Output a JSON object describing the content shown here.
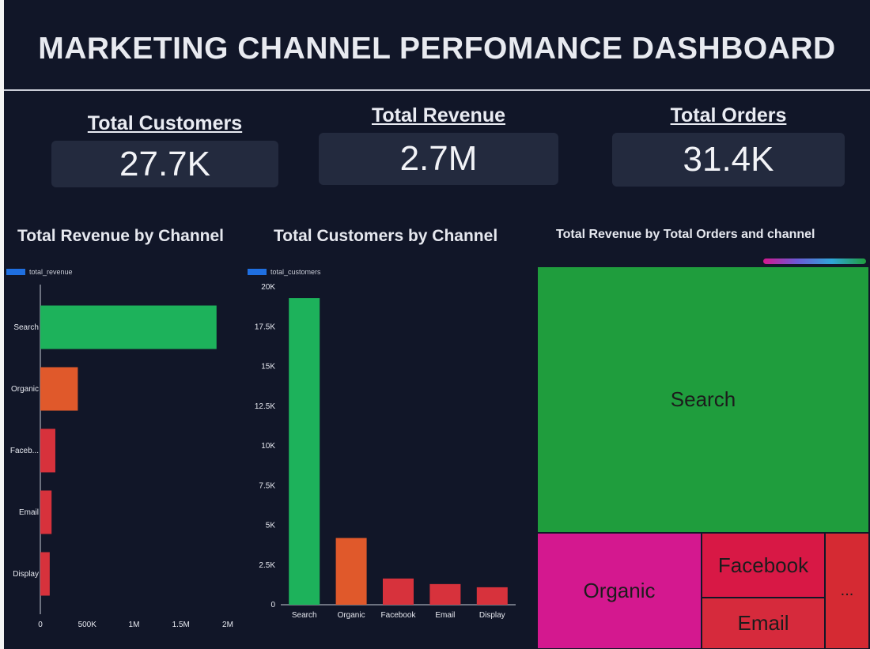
{
  "dashboard": {
    "title": "MARKETING CHANNEL PERFOMANCE DASHBOARD"
  },
  "kpis": [
    {
      "label": "Total Customers",
      "value": "27.7K"
    },
    {
      "label": "Total Revenue",
      "value": "2.7M"
    },
    {
      "label": "Total Orders",
      "value": "31.4K"
    }
  ],
  "colors": {
    "background": "#111628",
    "card": "#232a3e",
    "search": "#1db25b",
    "organic": "#e0592b",
    "other": "#d7323c",
    "legend": "#1f6fe0",
    "treemap_search": "#1f9d3d",
    "treemap_organic": "#d4188f",
    "treemap_facebook": "#d81845",
    "treemap_email": "#d62a3c",
    "treemap_display": "#d52a33"
  },
  "chart_data": [
    {
      "type": "bar",
      "orientation": "horizontal",
      "title": "Total Revenue by Channel",
      "legend": "total_revenue",
      "categories": [
        "Search",
        "Organic",
        "Facebook",
        "Email",
        "Display"
      ],
      "category_labels": [
        "Search",
        "Organic",
        "Faceb...",
        "Email",
        "Display"
      ],
      "values": [
        1880000,
        400000,
        160000,
        120000,
        100000
      ],
      "xlim": [
        0,
        2000000
      ],
      "ticks": [
        0,
        500000,
        1000000,
        1500000,
        2000000
      ],
      "tick_labels": [
        "0",
        "500K",
        "1M",
        "1.5M",
        "2M"
      ]
    },
    {
      "type": "bar",
      "title": "Total Customers by Channel",
      "legend": "total_customers",
      "categories": [
        "Search",
        "Organic",
        "Facebook",
        "Email",
        "Display"
      ],
      "values": [
        19300,
        4200,
        1650,
        1300,
        1100
      ],
      "ylim": [
        0,
        20000
      ],
      "ticks": [
        0,
        2500,
        5000,
        7500,
        10000,
        12500,
        15000,
        17500,
        20000
      ],
      "tick_labels": [
        "0",
        "2.5K",
        "5K",
        "7.5K",
        "10K",
        "12.5K",
        "15K",
        "17.5K",
        "20K"
      ]
    },
    {
      "type": "treemap",
      "title": "Total Revenue by Total Orders and channel",
      "cells": [
        {
          "label": "Search"
        },
        {
          "label": "Organic"
        },
        {
          "label": "Facebook"
        },
        {
          "label": "Email"
        },
        {
          "label": "..."
        }
      ]
    }
  ]
}
